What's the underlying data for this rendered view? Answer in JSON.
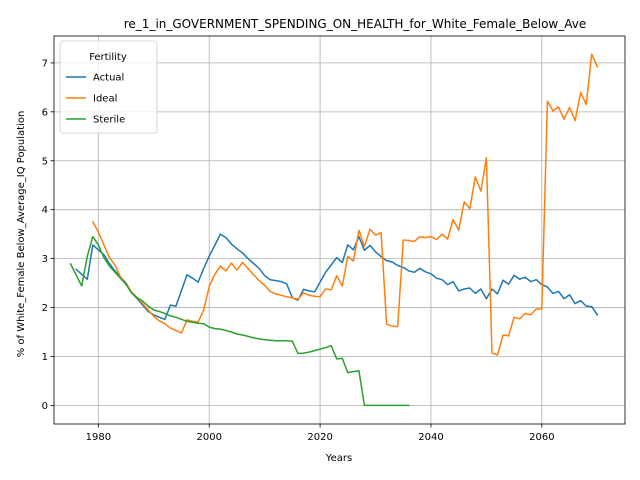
{
  "chart_data": {
    "type": "line",
    "title": "re_1_in_GOVERNMENT_SPENDING_ON_HEALTH_for_White_Female_Below_Ave",
    "xlabel": "Years",
    "ylabel": "% of White_Female Below_Average_IQ Population",
    "xlim": [
      1972,
      2075
    ],
    "ylim": [
      -0.38,
      7.55
    ],
    "xticks": [
      1980,
      2000,
      2020,
      2040,
      2060
    ],
    "yticks": [
      0,
      1,
      2,
      3,
      4,
      5,
      6,
      7
    ],
    "grid": true,
    "legend": {
      "title": "Fertility",
      "placement": "top-left"
    },
    "series": [
      {
        "name": "Actual",
        "color": "#1f77b4",
        "x": [
          1976,
          1978,
          1979,
          1980,
          1981,
          1982,
          1983,
          1984,
          1985,
          1986,
          1987,
          1988,
          1989,
          1990,
          1991,
          1992,
          1993,
          1994,
          1995,
          1996,
          1997,
          1998,
          1999,
          2000,
          2001,
          2002,
          2003,
          2004,
          2005,
          2006,
          2007,
          2008,
          2009,
          2010,
          2011,
          2012,
          2013,
          2014,
          2015,
          2016,
          2017,
          2018,
          2019,
          2020,
          2021,
          2022,
          2023,
          2024,
          2025,
          2026,
          2027,
          2028,
          2029,
          2030,
          2031,
          2032,
          2033,
          2034,
          2035,
          2036,
          2037,
          2038,
          2039,
          2040,
          2041,
          2042,
          2043,
          2044,
          2045,
          2046,
          2047,
          2048,
          2049,
          2050,
          2051,
          2052,
          2053,
          2054,
          2055,
          2056,
          2057,
          2058,
          2059,
          2060,
          2061,
          2062,
          2063,
          2064,
          2065,
          2066,
          2067,
          2068,
          2069,
          2070
        ],
        "values": [
          2.78,
          2.58,
          3.28,
          3.18,
          3.08,
          2.9,
          2.75,
          2.62,
          2.5,
          2.3,
          2.18,
          2.05,
          1.92,
          1.85,
          1.8,
          1.76,
          2.05,
          2.03,
          2.35,
          2.67,
          2.6,
          2.52,
          2.8,
          3.05,
          3.27,
          3.5,
          3.43,
          3.3,
          3.2,
          3.12,
          3.0,
          2.9,
          2.8,
          2.65,
          2.57,
          2.55,
          2.53,
          2.48,
          2.2,
          2.15,
          2.37,
          2.34,
          2.32,
          2.52,
          2.72,
          2.87,
          3.02,
          2.92,
          3.28,
          3.18,
          3.45,
          3.17,
          3.27,
          3.14,
          3.04,
          2.96,
          2.93,
          2.86,
          2.82,
          2.75,
          2.72,
          2.8,
          2.73,
          2.69,
          2.6,
          2.57,
          2.47,
          2.53,
          2.34,
          2.38,
          2.4,
          2.29,
          2.38,
          2.18,
          2.38,
          2.28,
          2.56,
          2.48,
          2.66,
          2.58,
          2.62,
          2.53,
          2.57,
          2.47,
          2.42,
          2.29,
          2.33,
          2.18,
          2.26,
          2.08,
          2.14,
          2.03,
          2.02,
          1.85
        ]
      },
      {
        "name": "Ideal",
        "color": "#ff7f0e",
        "x": [
          1979,
          1980,
          1981,
          1982,
          1983,
          1984,
          1985,
          1986,
          1987,
          1988,
          1989,
          1990,
          1991,
          1992,
          1993,
          1994,
          1995,
          1996,
          1997,
          1998,
          1999,
          2000,
          2001,
          2002,
          2003,
          2004,
          2005,
          2006,
          2007,
          2008,
          2009,
          2010,
          2011,
          2012,
          2013,
          2014,
          2015,
          2016,
          2017,
          2018,
          2019,
          2020,
          2021,
          2022,
          2023,
          2024,
          2025,
          2026,
          2027,
          2028,
          2029,
          2030,
          2031,
          2032,
          2033,
          2034,
          2035,
          2036,
          2037,
          2038,
          2039,
          2040,
          2041,
          2042,
          2043,
          2044,
          2045,
          2046,
          2047,
          2048,
          2049,
          2050,
          2051,
          2052,
          2053,
          2054,
          2055,
          2056,
          2057,
          2058,
          2059,
          2060,
          2061,
          2062,
          2063,
          2064,
          2065,
          2066,
          2067,
          2068,
          2069,
          2070
        ],
        "values": [
          3.75,
          3.55,
          3.28,
          3.02,
          2.87,
          2.62,
          2.48,
          2.32,
          2.2,
          2.08,
          1.95,
          1.82,
          1.73,
          1.67,
          1.58,
          1.53,
          1.48,
          1.75,
          1.72,
          1.7,
          1.95,
          2.43,
          2.68,
          2.85,
          2.75,
          2.91,
          2.77,
          2.92,
          2.8,
          2.67,
          2.55,
          2.45,
          2.33,
          2.28,
          2.25,
          2.22,
          2.2,
          2.17,
          2.3,
          2.25,
          2.23,
          2.22,
          2.38,
          2.36,
          2.65,
          2.44,
          3.05,
          2.95,
          3.58,
          3.25,
          3.6,
          3.48,
          3.53,
          1.66,
          1.62,
          1.61,
          3.38,
          3.37,
          3.35,
          3.45,
          3.43,
          3.45,
          3.39,
          3.5,
          3.4,
          3.8,
          3.58,
          4.16,
          4.02,
          4.67,
          4.38,
          5.06,
          1.07,
          1.03,
          1.44,
          1.42,
          1.8,
          1.77,
          1.88,
          1.85,
          1.97,
          1.97,
          6.22,
          6.02,
          6.1,
          5.85,
          6.09,
          5.82,
          6.4,
          6.15,
          7.18,
          6.92
        ]
      },
      {
        "name": "Sterile",
        "color": "#2ca02c",
        "x": [
          1975,
          1977,
          1978,
          1979,
          1980,
          1981,
          1982,
          1983,
          1984,
          1985,
          1986,
          1987,
          1988,
          1989,
          1990,
          1991,
          1992,
          1993,
          1994,
          1995,
          1996,
          1997,
          1998,
          1999,
          2000,
          2001,
          2002,
          2003,
          2004,
          2005,
          2006,
          2007,
          2008,
          2009,
          2010,
          2011,
          2012,
          2013,
          2014,
          2015,
          2016,
          2017,
          2018,
          2019,
          2020,
          2021,
          2022,
          2023,
          2024,
          2025,
          2026,
          2027,
          2028,
          2029,
          2030,
          2031,
          2032,
          2033,
          2034,
          2035,
          2036
        ],
        "values": [
          2.89,
          2.44,
          3.05,
          3.45,
          3.28,
          3.02,
          2.85,
          2.72,
          2.6,
          2.47,
          2.3,
          2.2,
          2.13,
          2.03,
          1.95,
          1.92,
          1.88,
          1.83,
          1.8,
          1.76,
          1.72,
          1.7,
          1.68,
          1.67,
          1.6,
          1.57,
          1.56,
          1.53,
          1.5,
          1.46,
          1.44,
          1.41,
          1.38,
          1.36,
          1.34,
          1.33,
          1.32,
          1.32,
          1.32,
          1.31,
          1.06,
          1.07,
          1.09,
          1.12,
          1.15,
          1.18,
          1.22,
          0.95,
          0.96,
          0.67,
          0.69,
          0.71,
          0.0,
          0.0,
          0.0,
          0.0,
          0.0,
          0.0,
          0.0,
          0.0,
          0.0
        ]
      }
    ]
  }
}
